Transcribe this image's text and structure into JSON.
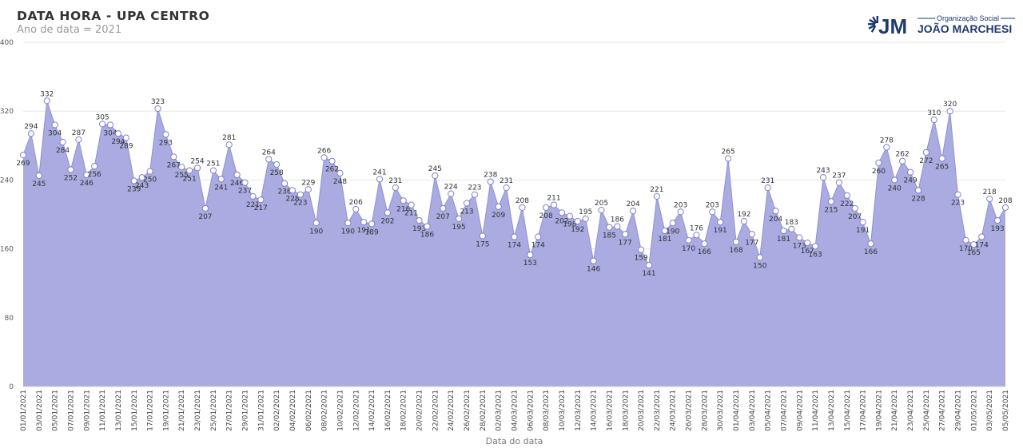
{
  "header": {
    "title": "DATA HORA - UPA CENTRO",
    "subtitle": "Ano de data = 2021"
  },
  "logo": {
    "org_label": "Organização Social",
    "mark": "JM",
    "name": "JOÃO MARCHESI",
    "color": "#1e3a6e"
  },
  "chart_data": {
    "type": "area",
    "xlabel": "Data do data",
    "ylabel": "",
    "ylim": [
      0,
      400
    ],
    "yticks": [
      0,
      80,
      160,
      240,
      320,
      400
    ],
    "grid": true,
    "fill_color": "#a9abe1",
    "x": [
      "01/01/2021",
      "02/01/2021",
      "03/01/2021",
      "04/01/2021",
      "05/01/2021",
      "06/01/2021",
      "07/01/2021",
      "08/01/2021",
      "09/01/2021",
      "10/01/2021",
      "11/01/2021",
      "12/01/2021",
      "13/01/2021",
      "14/01/2021",
      "15/01/2021",
      "16/01/2021",
      "17/01/2021",
      "18/01/2021",
      "19/01/2021",
      "20/01/2021",
      "21/01/2021",
      "22/01/2021",
      "23/01/2021",
      "24/01/2021",
      "25/01/2021",
      "26/01/2021",
      "27/01/2021",
      "28/01/2021",
      "29/01/2021",
      "30/01/2021",
      "31/01/2021",
      "01/02/2021",
      "02/02/2021",
      "03/02/2021",
      "04/02/2021",
      "05/02/2021",
      "06/02/2021",
      "07/02/2021",
      "08/02/2021",
      "09/02/2021",
      "10/02/2021",
      "11/02/2021",
      "12/02/2021",
      "13/02/2021",
      "14/02/2021",
      "15/02/2021",
      "16/02/2021",
      "17/02/2021",
      "18/02/2021",
      "19/02/2021",
      "20/02/2021",
      "21/02/2021",
      "22/02/2021",
      "23/02/2021",
      "24/02/2021",
      "25/02/2021",
      "26/02/2021",
      "27/02/2021",
      "28/02/2021",
      "01/03/2021",
      "02/03/2021",
      "03/03/2021",
      "04/03/2021",
      "05/03/2021",
      "06/03/2021",
      "07/03/2021",
      "08/03/2021",
      "09/03/2021",
      "10/03/2021",
      "11/03/2021",
      "12/03/2021",
      "13/03/2021",
      "14/03/2021",
      "15/03/2021",
      "16/03/2021",
      "17/03/2021",
      "18/03/2021",
      "19/03/2021",
      "20/03/2021",
      "21/03/2021",
      "22/03/2021",
      "23/03/2021",
      "24/03/2021",
      "25/03/2021",
      "26/03/2021",
      "27/03/2021",
      "28/03/2021",
      "29/03/2021",
      "30/03/2021",
      "31/03/2021",
      "01/04/2021",
      "02/04/2021",
      "03/04/2021",
      "04/04/2021",
      "05/04/2021",
      "06/04/2021",
      "07/04/2021",
      "08/04/2021",
      "09/04/2021",
      "10/04/2021",
      "11/04/2021",
      "12/04/2021",
      "13/04/2021",
      "14/04/2021",
      "15/04/2021",
      "16/04/2021",
      "17/04/2021",
      "18/04/2021",
      "19/04/2021",
      "20/04/2021",
      "21/04/2021",
      "22/04/2021",
      "23/04/2021",
      "24/04/2021",
      "25/04/2021",
      "26/04/2021",
      "27/04/2021",
      "28/04/2021",
      "29/04/2021",
      "30/04/2021",
      "01/05/2021",
      "02/05/2021",
      "03/05/2021",
      "04/05/2021",
      "05/05/2021"
    ],
    "values": [
      269,
      294,
      245,
      332,
      304,
      284,
      252,
      287,
      246,
      256,
      305,
      304,
      294,
      289,
      239,
      243,
      250,
      323,
      293,
      267,
      255,
      251,
      254,
      207,
      251,
      241,
      281,
      246,
      237,
      221,
      217,
      264,
      258,
      236,
      228,
      223,
      229,
      190,
      266,
      262,
      248,
      190,
      206,
      191,
      189,
      241,
      202,
      231,
      216,
      211,
      193,
      186,
      245,
      207,
      224,
      195,
      213,
      223,
      175,
      238,
      209,
      231,
      174,
      208,
      153,
      174,
      208,
      211,
      202,
      198,
      192,
      195,
      146,
      205,
      185,
      186,
      177,
      204,
      159,
      141,
      221,
      181,
      190,
      203,
      170,
      176,
      166,
      203,
      191,
      265,
      168,
      192,
      177,
      150,
      231,
      204,
      181,
      183,
      173,
      167,
      163,
      243,
      215,
      237,
      222,
      207,
      191,
      166,
      260,
      278,
      240,
      262,
      249,
      228,
      272,
      310,
      265,
      320,
      223,
      170,
      165,
      174,
      218,
      193,
      208
    ],
    "xtick_labels": [
      "01/01/2021",
      "03/01/2021",
      "05/01/2021",
      "07/01/2021",
      "09/01/2021",
      "11/01/2021",
      "13/01/2021",
      "15/01/2021",
      "17/01/2021",
      "19/01/2021",
      "21/01/2021",
      "23/01/2021",
      "25/01/2021",
      "27/01/2021",
      "29/01/2021",
      "31/01/2021",
      "02/02/2021",
      "04/02/2021",
      "06/02/2021",
      "08/02/2021",
      "10/02/2021",
      "12/02/2021",
      "14/02/2021",
      "16/02/2021",
      "18/02/2021",
      "20/02/2021",
      "22/02/2021",
      "24/02/2021",
      "26/02/2021",
      "28/02/2021",
      "02/03/2021",
      "04/03/2021",
      "06/03/2021",
      "08/03/2021",
      "10/03/2021",
      "12/03/2021",
      "14/03/2021",
      "16/03/2021",
      "18/03/2021",
      "20/03/2021",
      "22/03/2021",
      "24/03/2021",
      "26/03/2021",
      "28/03/2021",
      "30/03/2021",
      "01/04/2021",
      "03/04/2021",
      "05/04/2021",
      "07/04/2021",
      "09/04/2021",
      "11/04/2021",
      "13/04/2021",
      "15/04/2021",
      "17/04/2021",
      "19/04/2021",
      "21/04/2021",
      "23/04/2021",
      "25/04/2021",
      "27/04/2021",
      "29/04/2021",
      "01/05/2021",
      "03/05/2021",
      "05/05/2021"
    ]
  }
}
